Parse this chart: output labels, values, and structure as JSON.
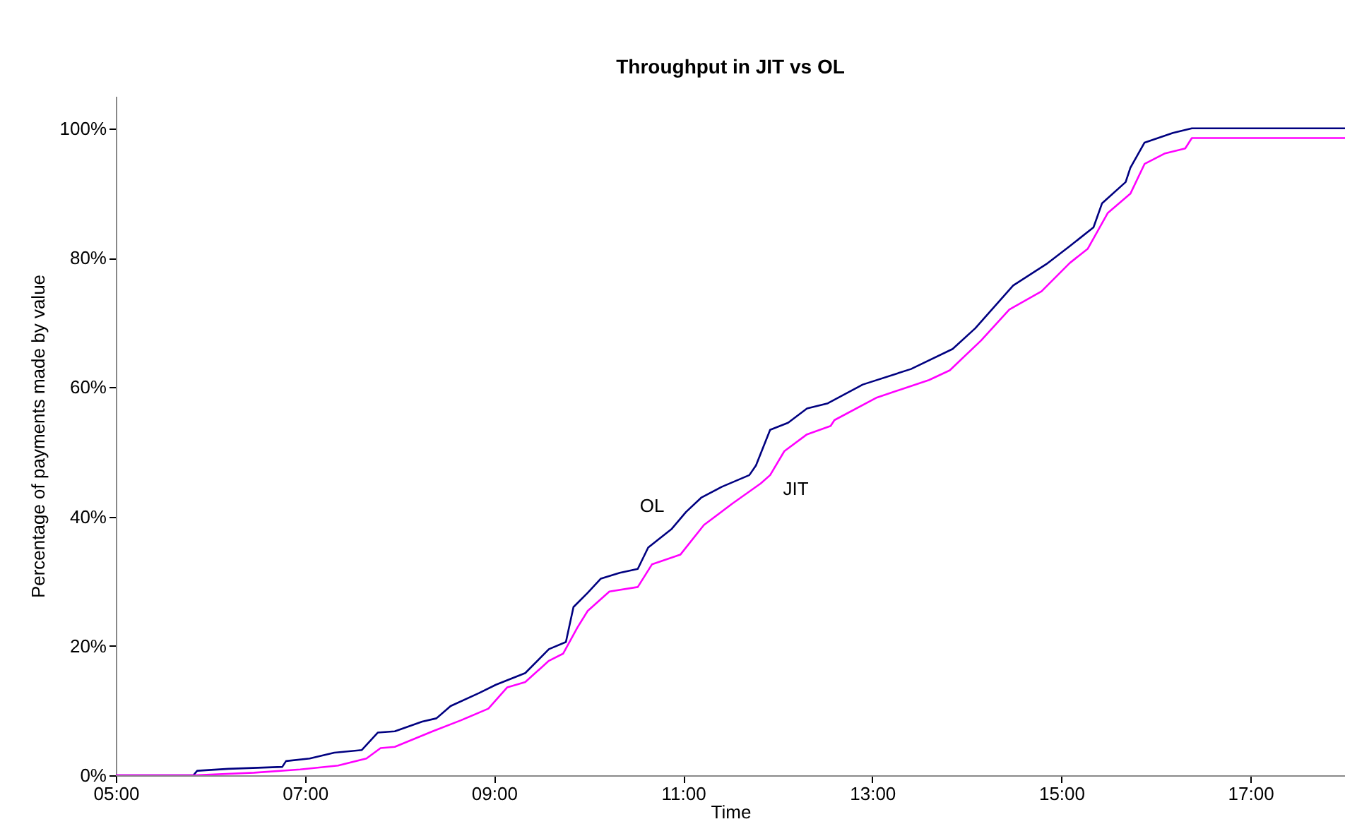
{
  "chart_data": {
    "type": "line",
    "title": "Throughput in JIT vs OL",
    "xlabel": "Time",
    "ylabel": "Percentage of payments made by value",
    "xlim": [
      5,
      18
    ],
    "xticks": [
      {
        "value": 5,
        "label": "05:00"
      },
      {
        "value": 7,
        "label": "07:00"
      },
      {
        "value": 9,
        "label": "09:00"
      },
      {
        "value": 11,
        "label": "11:00"
      },
      {
        "value": 13,
        "label": "13:00"
      },
      {
        "value": 15,
        "label": "15:00"
      },
      {
        "value": 17,
        "label": "17:00"
      }
    ],
    "ylim": [
      0,
      105
    ],
    "yticks": [
      {
        "value": 0,
        "label": "0%"
      },
      {
        "value": 20,
        "label": "20%"
      },
      {
        "value": 40,
        "label": "40%"
      },
      {
        "value": 60,
        "label": "60%"
      },
      {
        "value": 80,
        "label": "80%"
      },
      {
        "value": 100,
        "label": "100%"
      }
    ],
    "grid": false,
    "legend": false,
    "marker": "none",
    "line_style": "solid",
    "series": [
      {
        "name": "OL",
        "color": "#000080",
        "x": [
          5.0,
          5.82,
          5.86,
          6.19,
          6.76,
          6.8,
          7.05,
          7.31,
          7.6,
          7.77,
          7.95,
          8.24,
          8.39,
          8.54,
          8.84,
          9.02,
          9.33,
          9.58,
          9.76,
          9.84,
          9.99,
          10.13,
          10.33,
          10.52,
          10.63,
          10.88,
          11.03,
          11.19,
          11.41,
          11.7,
          11.77,
          11.92,
          12.11,
          12.31,
          12.53,
          12.9,
          13.41,
          13.85,
          14.09,
          14.49,
          14.84,
          15.09,
          15.34,
          15.43,
          15.68,
          15.73,
          15.88,
          16.18,
          16.38,
          18.0
        ],
        "values": [
          0,
          0,
          0.7,
          1.0,
          1.3,
          2.2,
          2.6,
          3.5,
          3.9,
          6.6,
          6.8,
          8.3,
          8.8,
          10.7,
          12.7,
          14.0,
          15.8,
          19.5,
          20.6,
          26.0,
          28.2,
          30.4,
          31.3,
          31.9,
          35.2,
          38.1,
          40.7,
          42.9,
          44.6,
          46.4,
          47.9,
          53.4,
          54.5,
          56.7,
          57.5,
          60.4,
          62.8,
          65.9,
          69.1,
          75.7,
          79.0,
          81.8,
          84.7,
          88.4,
          91.7,
          93.9,
          97.8,
          99.3,
          100,
          100
        ]
      },
      {
        "name": "JIT",
        "color": "#ff00ff",
        "x": [
          5.0,
          5.83,
          6.46,
          6.95,
          7.35,
          7.65,
          7.8,
          7.95,
          8.35,
          8.65,
          8.94,
          9.14,
          9.33,
          9.58,
          9.73,
          9.88,
          9.99,
          10.22,
          10.52,
          10.67,
          10.97,
          11.22,
          11.52,
          11.82,
          11.92,
          12.07,
          12.31,
          12.56,
          12.6,
          13.05,
          13.6,
          13.82,
          14.15,
          14.45,
          14.79,
          15.09,
          15.28,
          15.49,
          15.73,
          15.88,
          16.09,
          16.31,
          16.38,
          18.0
        ],
        "values": [
          0,
          0,
          0.4,
          0.9,
          1.5,
          2.6,
          4.2,
          4.4,
          6.8,
          8.5,
          10.3,
          13.6,
          14.4,
          17.7,
          18.8,
          22.8,
          25.4,
          28.4,
          29.1,
          32.6,
          34.1,
          38.7,
          42.0,
          45.1,
          46.4,
          50.1,
          52.7,
          54.0,
          54.9,
          58.4,
          61.1,
          62.6,
          67.2,
          72.0,
          74.8,
          79.2,
          81.4,
          86.9,
          89.9,
          94.5,
          96.1,
          96.9,
          98.5,
          98.5
        ]
      }
    ]
  }
}
